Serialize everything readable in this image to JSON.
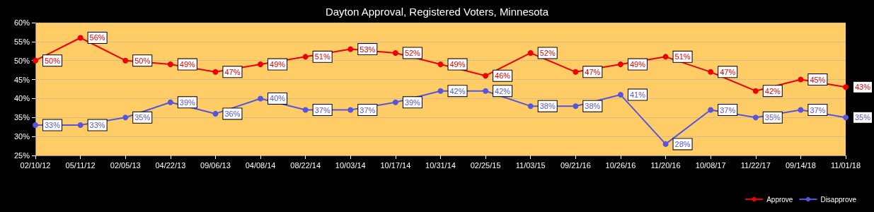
{
  "chart_data": {
    "type": "line",
    "title": "Dayton Approval, Registered Voters, Minnesota",
    "categories": [
      "02/10/12",
      "05/11/12",
      "02/05/13",
      "04/22/13",
      "09/06/13",
      "04/08/14",
      "08/22/14",
      "10/03/14",
      "10/17/14",
      "10/31/14",
      "02/25/15",
      "11/03/15",
      "09/21/16",
      "10/26/16",
      "11/20/16",
      "10/08/17",
      "11/22/17",
      "09/14/18",
      "11/01/18"
    ],
    "series": [
      {
        "name": "Approve",
        "color": "#ee0000",
        "values": [
          50,
          56,
          50,
          49,
          47,
          49,
          51,
          53,
          52,
          49,
          46,
          52,
          47,
          49,
          51,
          47,
          42,
          45,
          43
        ],
        "value_labels": [
          "50%",
          "56%",
          "50%",
          "49%",
          "47%",
          "49%",
          "51%",
          "53%",
          "52%",
          "49%",
          "46%",
          "52%",
          "47%",
          "49%",
          "51%",
          "47%",
          "42%",
          "45%",
          "43%"
        ]
      },
      {
        "name": "Disapprove",
        "color": "#5555dd",
        "values": [
          33,
          33,
          35,
          39,
          36,
          40,
          37,
          37,
          39,
          42,
          42,
          38,
          38,
          41,
          28,
          37,
          35,
          37,
          35
        ],
        "value_labels": [
          "33%",
          "33%",
          "35%",
          "39%",
          "36%",
          "40%",
          "37%",
          "37%",
          "39%",
          "42%",
          "42%",
          "38%",
          "38%",
          "41%",
          "28%",
          "37%",
          "35%",
          "37%",
          "35%"
        ]
      }
    ],
    "ylim": [
      25,
      60
    ],
    "yticks": [
      {
        "value": 25,
        "label": "25%"
      },
      {
        "value": 30,
        "label": "30%"
      },
      {
        "value": 35,
        "label": "35%"
      },
      {
        "value": 40,
        "label": "40%"
      },
      {
        "value": 45,
        "label": "45%"
      },
      {
        "value": 50,
        "label": "50%"
      },
      {
        "value": 55,
        "label": "55%"
      },
      {
        "value": 60,
        "label": "60%"
      }
    ],
    "grid": "y",
    "legend": "bottom right",
    "marker": "circle",
    "line_style": "solid"
  }
}
